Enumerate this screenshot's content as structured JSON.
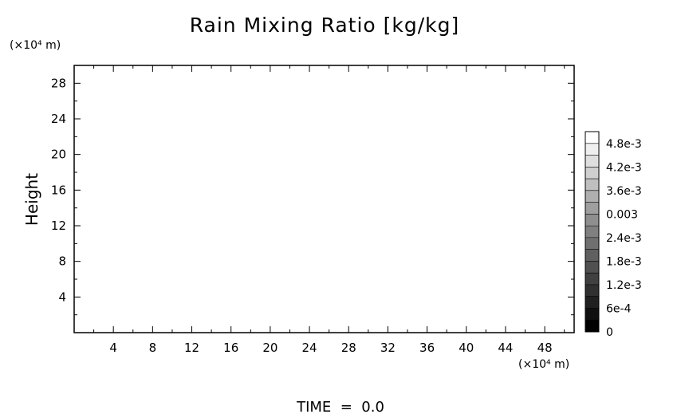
{
  "chart_data": {
    "type": "heatmap",
    "title": "Rain Mixing Ratio [kg/kg]",
    "xlabel": "",
    "ylabel": "Height",
    "x_unit": "(×10⁴ m)",
    "y_unit": "(×10⁴ m)",
    "xlim": [
      0,
      51
    ],
    "ylim": [
      0,
      30
    ],
    "x_ticks": [
      4,
      8,
      12,
      16,
      20,
      24,
      28,
      32,
      36,
      40,
      44,
      48
    ],
    "y_ticks": [
      4,
      8,
      12,
      16,
      20,
      24,
      28
    ],
    "grid": false,
    "values": [],
    "colorbar": {
      "min": 0,
      "max": 0.0051,
      "labels": [
        "0",
        "6e-4",
        "1.2e-3",
        "1.8e-3",
        "2.4e-3",
        "0.003",
        "3.6e-3",
        "4.2e-3",
        "4.8e-3"
      ],
      "label_values": [
        0,
        0.0006,
        0.0012,
        0.0018,
        0.0024,
        0.003,
        0.0036,
        0.0042,
        0.0048
      ],
      "color_low": "#000000",
      "color_high": "#ffffff"
    },
    "footer": "TIME  =  0.0"
  }
}
